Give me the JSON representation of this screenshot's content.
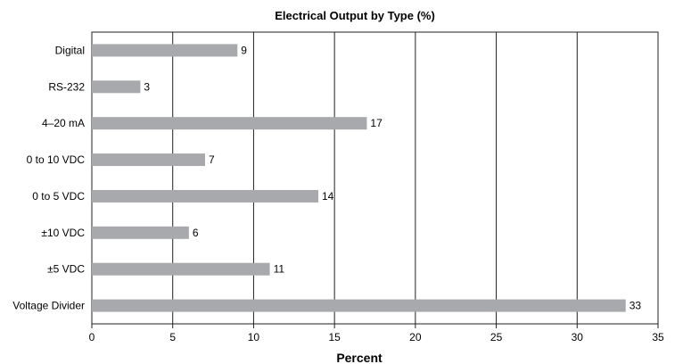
{
  "chart_data": {
    "type": "bar",
    "orientation": "horizontal",
    "title": "Electrical Output by Type (%)",
    "xlabel": "Percent",
    "ylabel": "",
    "categories": [
      "Digital",
      "RS-232",
      "4–20 mA",
      "0 to 10 VDC",
      "0 to 5 VDC",
      "±10 VDC",
      "±5 VDC",
      "Voltage Divider"
    ],
    "values": [
      9,
      3,
      17,
      7,
      14,
      6,
      11,
      33
    ],
    "xlim": [
      0,
      35
    ],
    "xticks": [
      0,
      5,
      10,
      15,
      20,
      25,
      30,
      35
    ],
    "grid": "vertical",
    "legend": "none",
    "bar_color": "#a7a9ac",
    "axis_color": "#231f20",
    "grid_color": "#231f20"
  }
}
